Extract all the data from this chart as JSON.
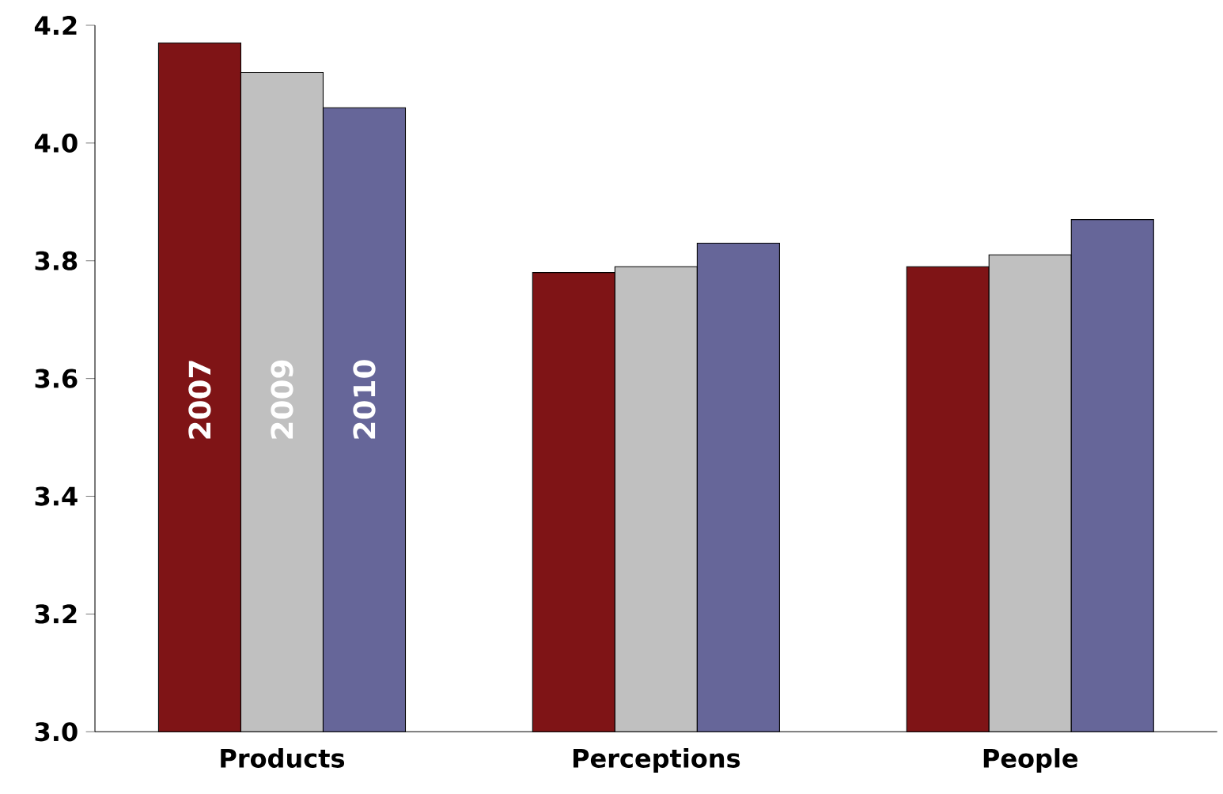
{
  "chart_data": {
    "type": "bar",
    "categories": [
      "Products",
      "Perceptions",
      "People"
    ],
    "series": [
      {
        "name": "2007",
        "color": "#7f1416",
        "values": [
          4.17,
          3.78,
          3.79
        ]
      },
      {
        "name": "2009",
        "color": "#c0c0c0",
        "values": [
          4.12,
          3.79,
          3.81
        ]
      },
      {
        "name": "2010",
        "color": "#666699",
        "values": [
          4.06,
          3.83,
          3.87
        ]
      }
    ],
    "ylim": [
      3.0,
      4.2
    ],
    "yticks": [
      {
        "value": 3.0,
        "label": "3.0"
      },
      {
        "value": 3.2,
        "label": "3.2"
      },
      {
        "value": 3.4,
        "label": "3.4"
      },
      {
        "value": 3.6,
        "label": "3.6"
      },
      {
        "value": 3.8,
        "label": "3.8"
      },
      {
        "value": 4.0,
        "label": "4.0"
      },
      {
        "value": 4.2,
        "label": "4.2"
      }
    ],
    "grid": false,
    "legend": false
  }
}
